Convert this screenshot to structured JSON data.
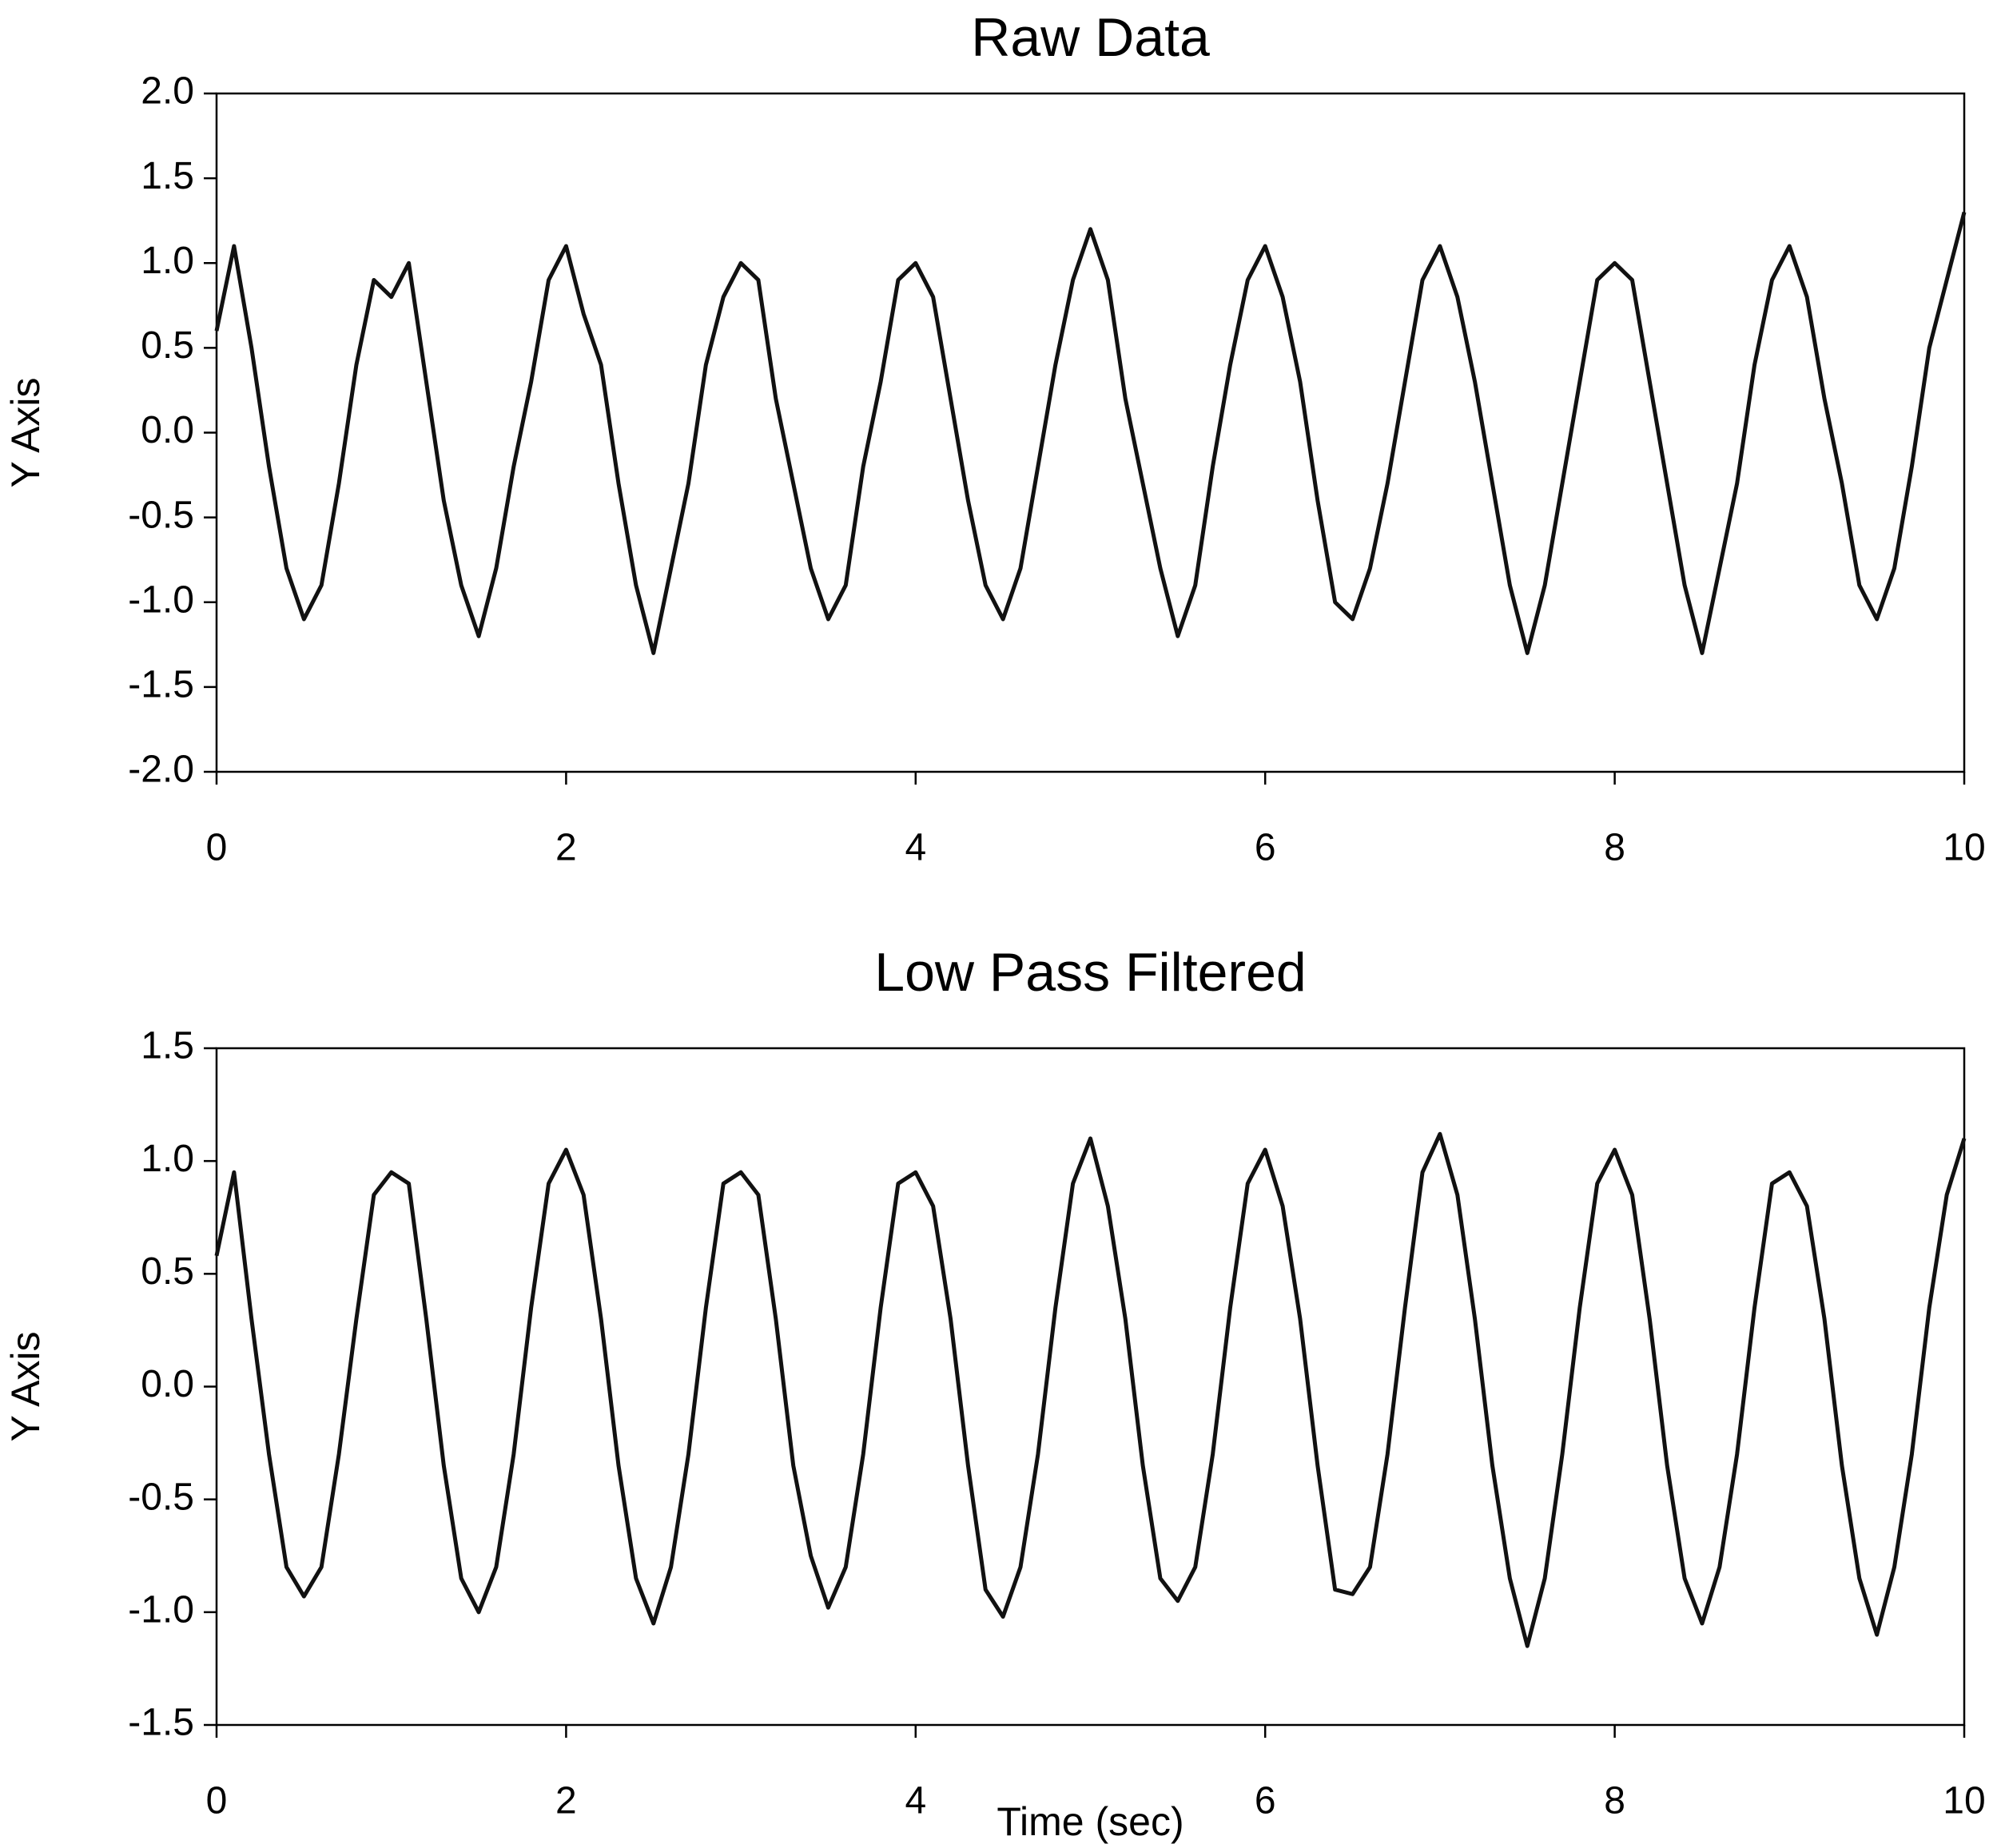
{
  "chart_data": [
    {
      "type": "line",
      "title": "Raw Data",
      "ylabel": "Y Axis",
      "x": [
        0,
        0.1,
        0.2,
        0.3,
        0.4,
        0.5,
        0.6,
        0.7,
        0.8,
        0.9,
        1,
        1.1,
        1.2,
        1.3,
        1.4,
        1.5,
        1.6,
        1.7,
        1.8,
        1.9,
        2,
        2.1,
        2.2,
        2.3,
        2.4,
        2.5,
        2.6,
        2.7,
        2.8,
        2.9,
        3,
        3.1,
        3.2,
        3.3,
        3.4,
        3.5,
        3.6,
        3.7,
        3.8,
        3.9,
        4,
        4.1,
        4.2,
        4.3,
        4.4,
        4.5,
        4.6,
        4.7,
        4.8,
        4.9,
        5,
        5.1,
        5.2,
        5.3,
        5.4,
        5.5,
        5.6,
        5.7,
        5.8,
        5.9,
        6,
        6.1,
        6.2,
        6.3,
        6.4,
        6.5,
        6.6,
        6.7,
        6.8,
        6.9,
        7,
        7.1,
        7.2,
        7.3,
        7.4,
        7.5,
        7.6,
        7.7,
        7.8,
        7.9,
        8,
        8.1,
        8.2,
        8.3,
        8.4,
        8.5,
        8.6,
        8.7,
        8.8,
        8.9,
        9,
        9.1,
        9.2,
        9.3,
        9.4,
        9.5,
        9.6,
        9.7,
        9.8,
        9.9,
        10
      ],
      "series": [
        {
          "color": "#111111",
          "values": [
            0.6,
            1.1,
            0.5,
            -0.2,
            -0.8,
            -1.1,
            -0.9,
            -0.3,
            0.4,
            0.9,
            0.8,
            1.0,
            0.3,
            -0.4,
            -0.9,
            -1.2,
            -0.8,
            -0.2,
            0.3,
            0.9,
            1.1,
            0.7,
            0.4,
            -0.3,
            -0.9,
            -1.3,
            -0.8,
            -0.3,
            0.4,
            0.8,
            1.0,
            0.9,
            0.2,
            -0.3,
            -0.8,
            -1.1,
            -0.9,
            -0.2,
            0.3,
            0.9,
            1.0,
            0.8,
            0.2,
            -0.4,
            -0.9,
            -1.1,
            -0.8,
            -0.2,
            0.4,
            0.9,
            1.2,
            0.9,
            0.2,
            -0.3,
            -0.8,
            -1.2,
            -0.9,
            -0.2,
            0.4,
            0.9,
            1.1,
            0.8,
            0.3,
            -0.4,
            -1.0,
            -1.1,
            -0.8,
            -0.3,
            0.3,
            0.9,
            1.1,
            0.8,
            0.3,
            -0.3,
            -0.9,
            -1.3,
            -0.9,
            -0.3,
            0.3,
            0.9,
            1.0,
            0.9,
            0.3,
            -0.3,
            -0.9,
            -1.3,
            -0.8,
            -0.3,
            0.4,
            0.9,
            1.1,
            0.8,
            0.2,
            -0.3,
            -0.9,
            -1.1,
            -0.8,
            -0.2,
            0.5,
            0.9,
            1.3
          ]
        }
      ],
      "xlim": [
        0,
        10
      ],
      "xticks": [
        0,
        2,
        4,
        6,
        8,
        10
      ],
      "ylim": [
        -2,
        2
      ],
      "yticks": [
        {
          "value": -2,
          "label": "-2.0"
        },
        {
          "value": -1.5,
          "label": "-1.5"
        },
        {
          "value": -1,
          "label": "-1.0"
        },
        {
          "value": -0.5,
          "label": "-0.5"
        },
        {
          "value": 0,
          "label": "0.0"
        },
        {
          "value": 0.5,
          "label": "0.5"
        },
        {
          "value": 1,
          "label": "1.0"
        },
        {
          "value": 1.5,
          "label": "1.5"
        },
        {
          "value": 2,
          "label": "2.0"
        }
      ]
    },
    {
      "type": "line",
      "title": "Low Pass Filtered",
      "ylabel": "Y Axis",
      "xlabel": "Time (sec)",
      "x": [
        0,
        0.1,
        0.2,
        0.3,
        0.4,
        0.5,
        0.6,
        0.7,
        0.8,
        0.9,
        1,
        1.1,
        1.2,
        1.3,
        1.4,
        1.5,
        1.6,
        1.7,
        1.8,
        1.9,
        2,
        2.1,
        2.2,
        2.3,
        2.4,
        2.5,
        2.6,
        2.7,
        2.8,
        2.9,
        3,
        3.1,
        3.2,
        3.3,
        3.4,
        3.5,
        3.6,
        3.7,
        3.8,
        3.9,
        4,
        4.1,
        4.2,
        4.3,
        4.4,
        4.5,
        4.6,
        4.7,
        4.8,
        4.9,
        5,
        5.1,
        5.2,
        5.3,
        5.4,
        5.5,
        5.6,
        5.7,
        5.8,
        5.9,
        6,
        6.1,
        6.2,
        6.3,
        6.4,
        6.5,
        6.6,
        6.7,
        6.8,
        6.9,
        7,
        7.1,
        7.2,
        7.3,
        7.4,
        7.5,
        7.6,
        7.7,
        7.8,
        7.9,
        8,
        8.1,
        8.2,
        8.3,
        8.4,
        8.5,
        8.6,
        8.7,
        8.8,
        8.9,
        9,
        9.1,
        9.2,
        9.3,
        9.4,
        9.5,
        9.6,
        9.7,
        9.8,
        9.9,
        10
      ],
      "series": [
        {
          "color": "#111111",
          "values": [
            0.58,
            0.95,
            0.3,
            -0.3,
            -0.8,
            -0.93,
            -0.8,
            -0.3,
            0.3,
            0.85,
            0.95,
            0.9,
            0.3,
            -0.35,
            -0.85,
            -1.0,
            -0.8,
            -0.3,
            0.35,
            0.9,
            1.05,
            0.85,
            0.3,
            -0.35,
            -0.85,
            -1.05,
            -0.8,
            -0.3,
            0.35,
            0.9,
            0.95,
            0.85,
            0.3,
            -0.35,
            -0.75,
            -0.98,
            -0.8,
            -0.3,
            0.35,
            0.9,
            0.95,
            0.8,
            0.3,
            -0.35,
            -0.9,
            -1.02,
            -0.8,
            -0.3,
            0.35,
            0.9,
            1.1,
            0.8,
            0.3,
            -0.35,
            -0.85,
            -0.95,
            -0.8,
            -0.3,
            0.35,
            0.9,
            1.05,
            0.8,
            0.3,
            -0.35,
            -0.9,
            -0.92,
            -0.8,
            -0.3,
            0.35,
            0.95,
            1.12,
            0.85,
            0.3,
            -0.35,
            -0.85,
            -1.15,
            -0.85,
            -0.3,
            0.35,
            0.9,
            1.05,
            0.85,
            0.3,
            -0.35,
            -0.85,
            -1.05,
            -0.8,
            -0.3,
            0.35,
            0.9,
            0.95,
            0.8,
            0.3,
            -0.35,
            -0.85,
            -1.1,
            -0.8,
            -0.3,
            0.35,
            0.85,
            1.1
          ]
        }
      ],
      "xlim": [
        0,
        10
      ],
      "xticks": [
        0,
        2,
        4,
        6,
        8,
        10
      ],
      "ylim": [
        -1.5,
        1.5
      ],
      "yticks": [
        {
          "value": -1.5,
          "label": "-1.5"
        },
        {
          "value": -1,
          "label": "-1.0"
        },
        {
          "value": -0.5,
          "label": "-0.5"
        },
        {
          "value": 0,
          "label": "0.0"
        },
        {
          "value": 0.5,
          "label": "0.5"
        },
        {
          "value": 1,
          "label": "1.0"
        },
        {
          "value": 1.5,
          "label": "1.5"
        }
      ]
    }
  ]
}
